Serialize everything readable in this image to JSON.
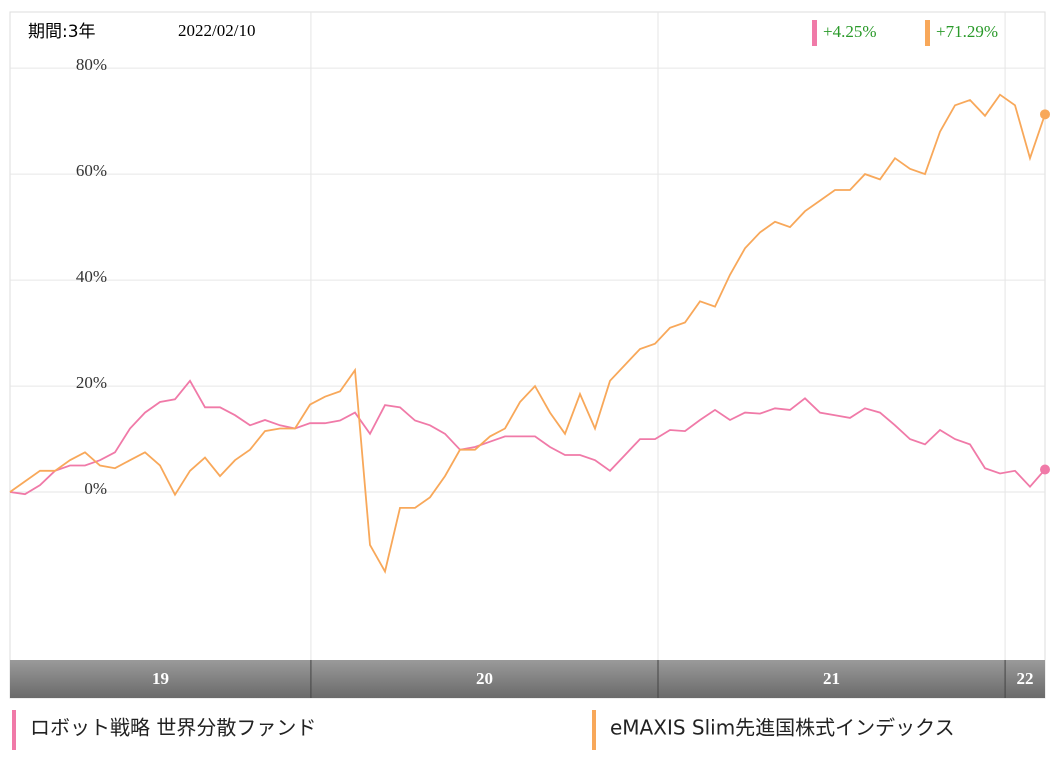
{
  "chart_data": {
    "type": "line",
    "period": "期間:3年",
    "date": "2022/02/10",
    "xlim": [
      2019.133,
      2022.115
    ],
    "xticks": [
      2020,
      2021,
      2022
    ],
    "year_bands": [
      "19",
      "20",
      "21",
      "22"
    ],
    "ylim": [
      -31.7,
      90.6
    ],
    "yticks": [
      {
        "value": 0,
        "label": "0%"
      },
      {
        "value": 20,
        "label": "20%"
      },
      {
        "value": 40,
        "label": "40%"
      },
      {
        "value": 60,
        "label": "60%"
      },
      {
        "value": 80,
        "label": "80%"
      }
    ],
    "grid": true,
    "series": [
      {
        "name": "ロボット戦略 世界分散ファンド",
        "color": "#f07aa8",
        "last_label": "+4.25%",
        "values": [
          0,
          -0.4,
          1.3,
          4,
          5,
          5,
          6,
          7.5,
          12,
          15,
          17,
          17.5,
          21,
          16,
          16,
          14.5,
          12.6,
          13.6,
          12.6,
          12,
          13,
          13,
          13.5,
          15,
          11,
          16.4,
          16,
          13.5,
          12.6,
          11,
          8,
          8.5,
          9.5,
          10.5,
          10.5,
          10.5,
          8.5,
          7,
          7,
          6,
          4,
          7,
          10,
          10,
          11.7,
          11.5,
          13.6,
          15.5,
          13.6,
          15,
          14.8,
          15.8,
          15.5,
          17.7,
          15,
          14.5,
          14,
          15.8,
          15,
          12.6,
          10,
          9,
          11.7,
          10,
          9,
          4.5,
          3.5,
          4,
          1,
          4.25
        ]
      },
      {
        "name": "eMAXIS Slim先進国株式インデックス",
        "color": "#f8a85a",
        "last_label": "+71.29%",
        "values": [
          0,
          2,
          4,
          4,
          6,
          7.5,
          5,
          4.5,
          6,
          7.5,
          5,
          -0.5,
          4,
          6.5,
          3,
          6,
          8,
          11.5,
          12,
          12,
          16.5,
          18,
          19,
          23,
          -10,
          -15,
          -3,
          -3,
          -1,
          3,
          8,
          8,
          10.5,
          12,
          17,
          20,
          15,
          11,
          18.5,
          12,
          21,
          24,
          27,
          28,
          31,
          32,
          36,
          35,
          41,
          46,
          49,
          51,
          50,
          53,
          55,
          57,
          57,
          60,
          59,
          63,
          61,
          60,
          68,
          73,
          74,
          71,
          75,
          73,
          63,
          71.29
        ]
      }
    ]
  }
}
